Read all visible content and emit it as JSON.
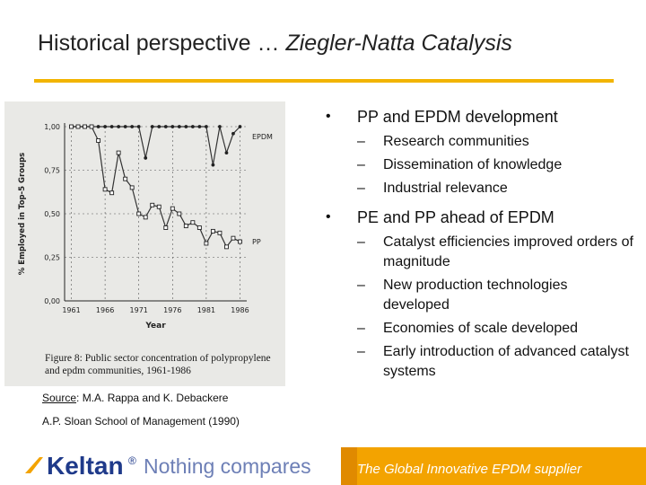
{
  "slide": {
    "title_plain": "Historical perspective … ",
    "title_italic": "Ziegler-Natta Catalysis"
  },
  "bullets": [
    {
      "text": "PP and EPDM development",
      "sub": [
        "Research communities",
        "Dissemination of knowledge",
        "Industrial relevance"
      ]
    },
    {
      "text": "PE and PP ahead of EPDM",
      "sub": [
        "Catalyst efficiencies improved orders of magnitude",
        "New production technologies developed",
        "Economies of scale developed",
        "Early introduction of advanced catalyst systems"
      ]
    }
  ],
  "source": {
    "label": "Source",
    "text": ": M.A. Rappa and K. Debackere",
    "line2": "A.P. Sloan School of Management (1990)"
  },
  "footer": {
    "brand": "Keltan",
    "reg": "®",
    "slogan": "Nothing compares",
    "band_text": "The Global Innovative EPDM supplier",
    "band_color": "#f3a300",
    "brand_color": "#1f3a8a"
  },
  "chart_data": {
    "type": "line",
    "ylabel": "% Employed in Top-5 Groups",
    "xlabel": "Year",
    "caption": "Figure 8: Public sector concentration of polypropylene and epdm communities, 1961-1986",
    "xlim": [
      1960,
      1987
    ],
    "ylim": [
      0,
      1.0
    ],
    "x_ticks": [
      1961,
      1966,
      1971,
      1976,
      1981,
      1986
    ],
    "y_ticks": [
      0,
      0.25,
      0.5,
      0.75,
      1.0
    ],
    "y_tick_labels": [
      "0,00",
      "0,25",
      "0,50",
      "0,75",
      "1,00"
    ],
    "series": [
      {
        "name": "EPDM",
        "x": [
          1961,
          1962,
          1963,
          1964,
          1965,
          1966,
          1967,
          1968,
          1969,
          1970,
          1971,
          1972,
          1973,
          1974,
          1975,
          1976,
          1977,
          1978,
          1979,
          1980,
          1981,
          1982,
          1983,
          1984,
          1985,
          1986
        ],
        "y": [
          1.0,
          1.0,
          1.0,
          1.0,
          1.0,
          1.0,
          1.0,
          1.0,
          1.0,
          1.0,
          1.0,
          0.82,
          1.0,
          1.0,
          1.0,
          1.0,
          1.0,
          1.0,
          1.0,
          1.0,
          1.0,
          0.78,
          1.0,
          0.85,
          0.96,
          1.0
        ]
      },
      {
        "name": "PP",
        "x": [
          1961,
          1962,
          1963,
          1964,
          1965,
          1966,
          1967,
          1968,
          1969,
          1970,
          1971,
          1972,
          1973,
          1974,
          1975,
          1976,
          1977,
          1978,
          1979,
          1980,
          1981,
          1982,
          1983,
          1984,
          1985,
          1986
        ],
        "y": [
          1.0,
          1.0,
          1.0,
          1.0,
          0.92,
          0.64,
          0.62,
          0.85,
          0.7,
          0.65,
          0.5,
          0.48,
          0.55,
          0.54,
          0.42,
          0.53,
          0.5,
          0.43,
          0.45,
          0.42,
          0.33,
          0.4,
          0.39,
          0.31,
          0.36,
          0.34
        ]
      }
    ]
  }
}
